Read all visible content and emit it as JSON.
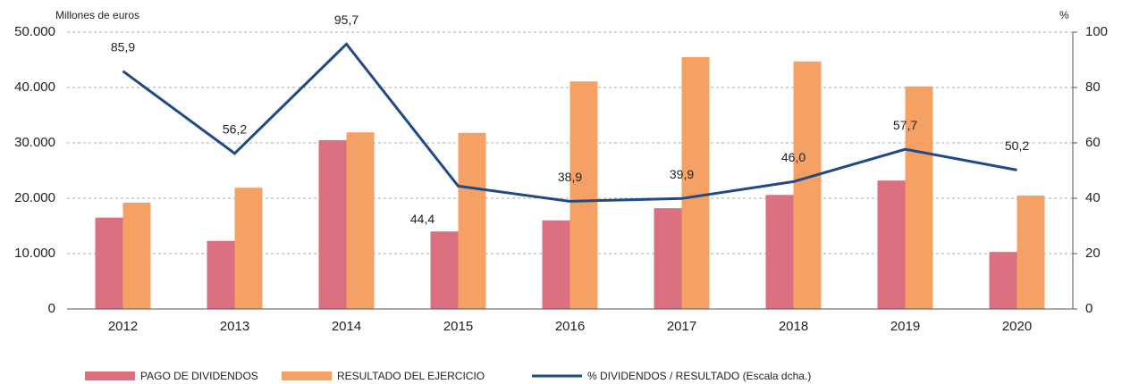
{
  "chart_data": {
    "type": "bar_line",
    "y_label": "Millones de euros",
    "y2_label": "%",
    "categories": [
      "2012",
      "2013",
      "2014",
      "2015",
      "2016",
      "2017",
      "2018",
      "2019",
      "2020"
    ],
    "series": [
      {
        "name": "PAGO DE DIVIDENDOS",
        "color": "#db7080",
        "type": "bar",
        "values": [
          16500,
          12300,
          30500,
          14000,
          16000,
          18200,
          20600,
          23200,
          10300
        ]
      },
      {
        "name": "RESULTADO DEL EJERCICIO",
        "color": "#f5a064",
        "type": "bar",
        "values": [
          19200,
          21900,
          31900,
          31800,
          41100,
          45500,
          44700,
          40200,
          20500
        ]
      },
      {
        "name": "% DIVIDENDOS / RESULTADO (Escala dcha.)",
        "color": "#1f4a87",
        "type": "line",
        "axis": "y2",
        "values": [
          85.9,
          56.2,
          95.7,
          44.4,
          38.9,
          39.9,
          46.0,
          57.7,
          50.2
        ],
        "value_labels": [
          "85,9",
          "56,2",
          "95,7",
          "44,4",
          "38,9",
          "39,9",
          "46,0",
          "57,7",
          "50,2"
        ]
      }
    ],
    "ylim": [
      0,
      50000
    ],
    "yticks": [
      0,
      {
        "value": 10000,
        "label": "10.000"
      },
      {
        "value": 20000,
        "label": "20.000"
      },
      {
        "value": 30000,
        "label": "30.000"
      },
      {
        "value": 40000,
        "label": "40.000"
      },
      {
        "value": 50000,
        "label": "50.000"
      }
    ],
    "y2lim": [
      0,
      100
    ],
    "y2ticks": [
      0,
      20,
      40,
      60,
      80,
      100
    ],
    "grid": true
  }
}
